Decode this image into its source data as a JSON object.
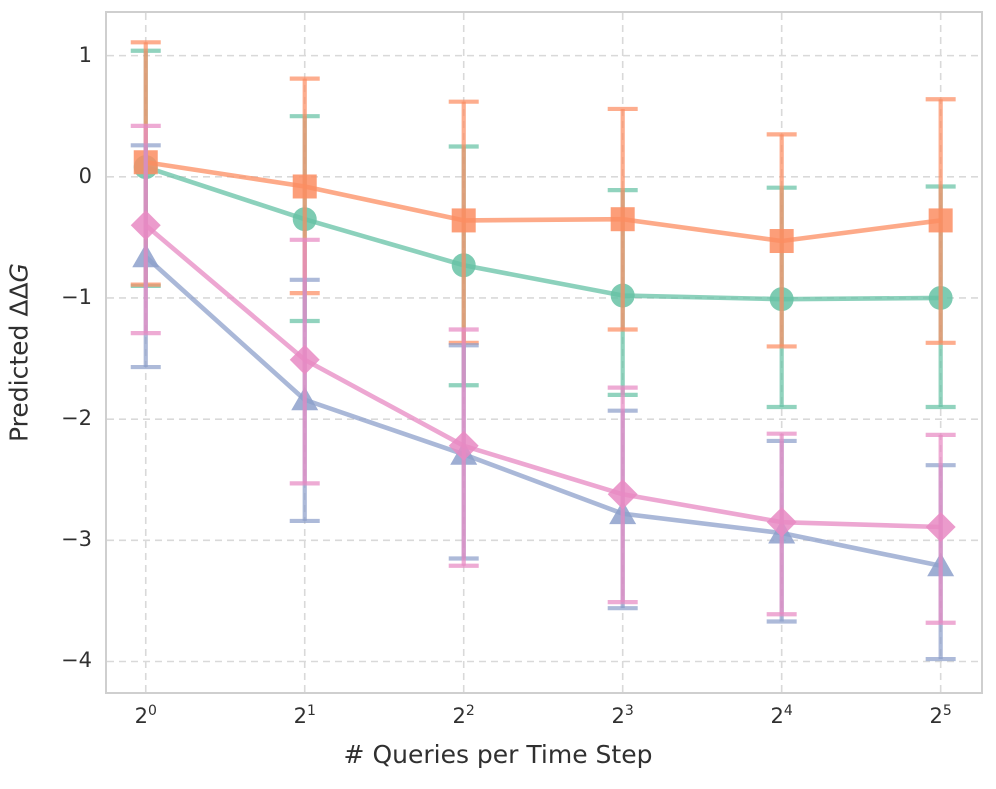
{
  "figure": {
    "background_color": "#ffffff",
    "text_color": "#303030",
    "grid_color": "#d9d9d9",
    "spine_color": "#cfcfcf"
  },
  "axes": {
    "x_label": "# Queries per Time Step",
    "y_label": "Predicted ΔΔG",
    "y_label_prefix": "Predicted ΔΔ",
    "y_label_italic": "G",
    "x_ticks": [
      {
        "base": "2",
        "exp": "0"
      },
      {
        "base": "2",
        "exp": "1"
      },
      {
        "base": "2",
        "exp": "2"
      },
      {
        "base": "2",
        "exp": "3"
      },
      {
        "base": "2",
        "exp": "4"
      },
      {
        "base": "2",
        "exp": "5"
      }
    ],
    "y_ticks": [
      {
        "value": 1,
        "label": "1"
      },
      {
        "value": 0,
        "label": "0"
      },
      {
        "value": -1,
        "label": "−1"
      },
      {
        "value": -2,
        "label": "−2"
      },
      {
        "value": -3,
        "label": "−3"
      },
      {
        "value": -4,
        "label": "−4"
      }
    ]
  },
  "chart_data": {
    "type": "line",
    "title": "",
    "xlabel": "# Queries per Time Step",
    "ylabel": "Predicted ΔΔG",
    "x_categories": [
      "2^0",
      "2^1",
      "2^2",
      "2^3",
      "2^4",
      "2^5"
    ],
    "x_values": [
      1,
      2,
      4,
      8,
      16,
      32
    ],
    "x_scale": "log2",
    "ylim": [
      -4.26,
      1.36
    ],
    "xlim_index": [
      -0.25,
      5.26
    ],
    "grid": true,
    "grid_style": "dashed",
    "legend": "none",
    "error_bars": "asymmetric-caps",
    "series": [
      {
        "name": "green-circle",
        "marker": "circle",
        "color": "#66C2A5",
        "values": [
          0.08,
          -0.35,
          -0.73,
          -0.98,
          -1.01,
          -1.0
        ],
        "err_high": [
          1.04,
          0.5,
          0.25,
          -0.11,
          -0.09,
          -0.08
        ],
        "err_low": [
          -0.9,
          -1.19,
          -1.72,
          -1.8,
          -1.9,
          -1.9
        ]
      },
      {
        "name": "orange-square",
        "marker": "square",
        "color": "#FC8D62",
        "values": [
          0.12,
          -0.08,
          -0.36,
          -0.35,
          -0.53,
          -0.36
        ],
        "err_high": [
          1.11,
          0.81,
          0.62,
          0.56,
          0.35,
          0.64
        ],
        "err_low": [
          -0.89,
          -0.96,
          -1.37,
          -1.26,
          -1.4,
          -1.37
        ]
      },
      {
        "name": "blue-triangle",
        "marker": "triangle",
        "color": "#8DA0CB",
        "values": [
          -0.66,
          -1.84,
          -2.29,
          -2.78,
          -2.94,
          -3.21
        ],
        "err_high": [
          0.26,
          -0.85,
          -1.39,
          -1.93,
          -2.18,
          -2.38
        ],
        "err_low": [
          -1.57,
          -2.84,
          -3.15,
          -3.56,
          -3.67,
          -3.98
        ]
      },
      {
        "name": "pink-diamond",
        "marker": "diamond",
        "color": "#E78AC3",
        "values": [
          -0.4,
          -1.51,
          -2.22,
          -2.62,
          -2.85,
          -2.89
        ],
        "err_high": [
          0.42,
          -0.52,
          -1.26,
          -1.74,
          -2.12,
          -2.13
        ],
        "err_low": [
          -1.29,
          -2.53,
          -3.21,
          -3.51,
          -3.61,
          -3.68
        ]
      }
    ]
  }
}
